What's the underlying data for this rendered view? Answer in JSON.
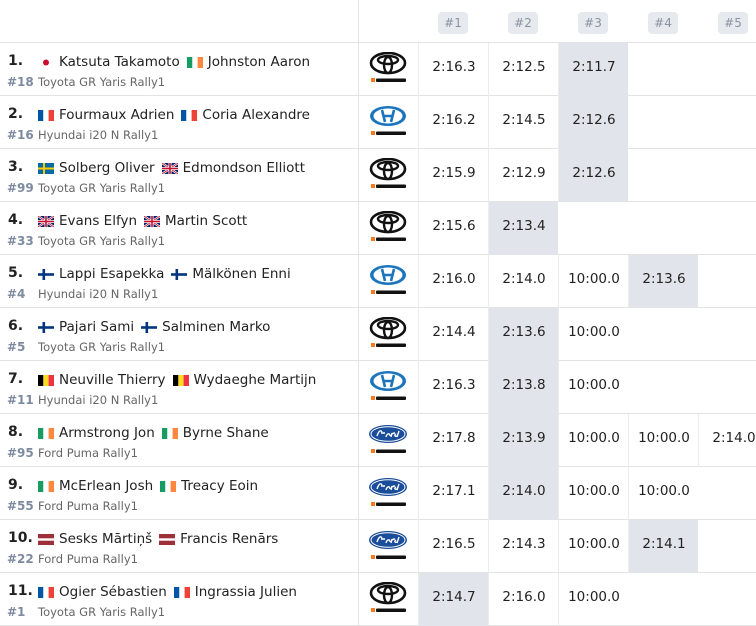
{
  "header": {
    "stages": [
      "#1",
      "#2",
      "#3",
      "#4",
      "#5"
    ]
  },
  "rows": [
    {
      "pos": "1.",
      "number": "#18",
      "make": "toyota",
      "car": "Toyota GR Yaris Rally1",
      "drivers": [
        {
          "flag": "jp",
          "name": "Katsuta Takamoto"
        },
        {
          "flag": "ie",
          "name": "Johnston Aaron"
        }
      ],
      "times": [
        "2:16.3",
        "2:12.5",
        "2:11.7"
      ]
    },
    {
      "pos": "2.",
      "number": "#16",
      "make": "hyundai",
      "car": "Hyundai i20 N Rally1",
      "drivers": [
        {
          "flag": "fr",
          "name": "Fourmaux Adrien"
        },
        {
          "flag": "fr",
          "name": "Coria Alexandre"
        }
      ],
      "times": [
        "2:16.2",
        "2:14.5",
        "2:12.6"
      ]
    },
    {
      "pos": "3.",
      "number": "#99",
      "make": "toyota",
      "car": "Toyota GR Yaris Rally1",
      "drivers": [
        {
          "flag": "se",
          "name": "Solberg Oliver"
        },
        {
          "flag": "gb",
          "name": "Edmondson Elliott"
        }
      ],
      "times": [
        "2:15.9",
        "2:12.9",
        "2:12.6"
      ]
    },
    {
      "pos": "4.",
      "number": "#33",
      "make": "toyota",
      "car": "Toyota GR Yaris Rally1",
      "drivers": [
        {
          "flag": "gb",
          "name": "Evans Elfyn"
        },
        {
          "flag": "gb",
          "name": "Martin Scott"
        }
      ],
      "times": [
        "2:15.6",
        "2:13.4"
      ]
    },
    {
      "pos": "5.",
      "number": "#4",
      "make": "hyundai",
      "car": "Hyundai i20 N Rally1",
      "drivers": [
        {
          "flag": "fi",
          "name": "Lappi Esapekka"
        },
        {
          "flag": "fi",
          "name": "Mälkönen Enni"
        }
      ],
      "times": [
        "2:16.0",
        "2:14.0",
        "10:00.0",
        "2:13.6"
      ]
    },
    {
      "pos": "6.",
      "number": "#5",
      "make": "toyota",
      "car": "Toyota GR Yaris Rally1",
      "drivers": [
        {
          "flag": "fi",
          "name": "Pajari Sami"
        },
        {
          "flag": "fi",
          "name": "Salminen Marko"
        }
      ],
      "times": [
        "2:14.4",
        "2:13.6",
        "10:00.0"
      ]
    },
    {
      "pos": "7.",
      "number": "#11",
      "make": "hyundai",
      "car": "Hyundai i20 N Rally1",
      "drivers": [
        {
          "flag": "be",
          "name": "Neuville Thierry"
        },
        {
          "flag": "be",
          "name": "Wydaeghe Martijn"
        }
      ],
      "times": [
        "2:16.3",
        "2:13.8",
        "10:00.0"
      ]
    },
    {
      "pos": "8.",
      "number": "#95",
      "make": "ford",
      "car": "Ford Puma Rally1",
      "drivers": [
        {
          "flag": "ie",
          "name": "Armstrong Jon"
        },
        {
          "flag": "ie",
          "name": "Byrne Shane"
        }
      ],
      "times": [
        "2:17.8",
        "2:13.9",
        "10:00.0",
        "10:00.0",
        "2:14.0"
      ]
    },
    {
      "pos": "9.",
      "number": "#55",
      "make": "ford",
      "car": "Ford Puma Rally1",
      "drivers": [
        {
          "flag": "ie",
          "name": "McErlean Josh"
        },
        {
          "flag": "ie",
          "name": "Treacy Eoin"
        }
      ],
      "times": [
        "2:17.1",
        "2:14.0",
        "10:00.0",
        "10:00.0"
      ]
    },
    {
      "pos": "10.",
      "number": "#22",
      "make": "ford",
      "car": "Ford Puma Rally1",
      "drivers": [
        {
          "flag": "lv",
          "name": "Sesks Mārtiņš"
        },
        {
          "flag": "lv",
          "name": "Francis Renārs"
        }
      ],
      "times": [
        "2:16.5",
        "2:14.3",
        "10:00.0",
        "2:14.1"
      ]
    },
    {
      "pos": "11.",
      "number": "#1",
      "make": "toyota",
      "car": "Toyota GR Yaris Rally1",
      "drivers": [
        {
          "flag": "fr",
          "name": "Ogier Sébastien"
        },
        {
          "flag": "fr",
          "name": "Ingrassia Julien"
        }
      ],
      "times": [
        "2:14.7",
        "2:16.0",
        "10:00.0"
      ]
    }
  ]
}
